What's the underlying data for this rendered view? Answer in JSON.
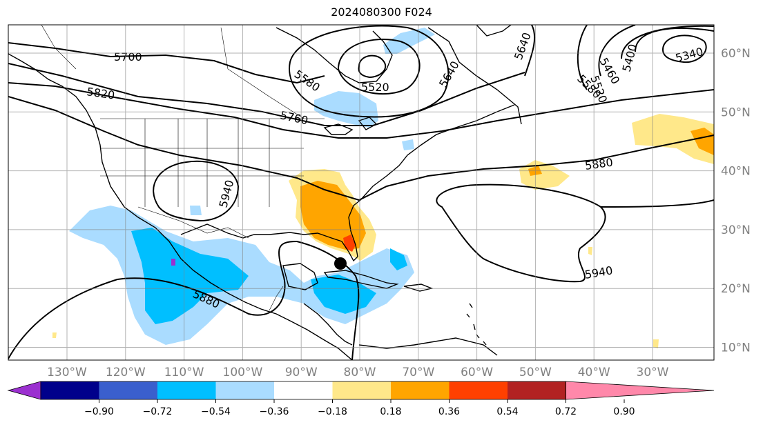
{
  "title": "2024080300 F024",
  "lon_ticks": [
    "130°W",
    "120°W",
    "110°W",
    "100°W",
    "90°W",
    "80°W",
    "70°W",
    "60°W",
    "50°W",
    "40°W",
    "30°W"
  ],
  "lat_ticks": [
    "60°N",
    "50°N",
    "40°N",
    "30°N",
    "20°N",
    "10°N"
  ],
  "colorbar": {
    "ticks": [
      "−0.90",
      "−0.72",
      "−0.54",
      "−0.36",
      "−0.18",
      "0.18",
      "0.36",
      "0.54",
      "0.72",
      "0.90"
    ],
    "colors": [
      "#9b30d0",
      "#00008b",
      "#3a5fcd",
      "#00bfff",
      "#aadcff",
      "#ffffff",
      "#ffe88a",
      "#ffa500",
      "#ff4000",
      "#b22222",
      "#ff88aa"
    ]
  },
  "contour_labels": [
    "5700",
    "5820",
    "5760",
    "5580",
    "5520",
    "5640",
    "5640",
    "5460",
    "5400",
    "5340",
    "5520",
    "5580",
    "5880",
    "5940",
    "5940",
    "5880"
  ],
  "storm_marker": "black-dot"
}
